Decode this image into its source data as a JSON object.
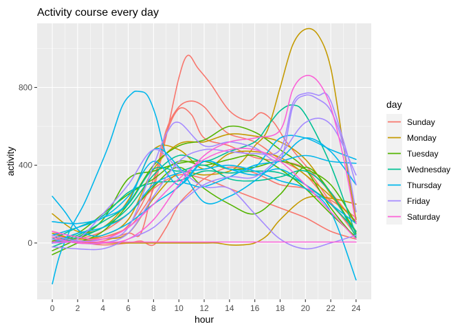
{
  "chart_data": {
    "type": "line",
    "title": "Activity course every day",
    "xlabel": "hour",
    "ylabel": "activity",
    "xlim": [
      -1.2,
      25.2
    ],
    "ylim": [
      -290,
      1130
    ],
    "x_ticks": [
      0,
      2,
      4,
      6,
      8,
      10,
      12,
      14,
      16,
      18,
      20,
      22,
      24
    ],
    "y_ticks": [
      0,
      400,
      800
    ],
    "grid": true,
    "legend_position": "right",
    "legend_title": "day",
    "series": [
      {
        "name": "Sunday",
        "color": "#F8766D",
        "lines": [
          {
            "x": [
              0,
              2,
              4,
              6,
              7,
              8,
              9,
              10,
              10.7,
              11.5,
              12.5,
              14,
              15.5,
              16.5,
              17.5,
              18.5,
              20,
              22,
              24
            ],
            "y": [
              20,
              10,
              30,
              80,
              160,
              280,
              550,
              850,
              965,
              900,
              820,
              680,
              630,
              670,
              620,
              520,
              400,
              260,
              100
            ]
          },
          {
            "x": [
              0,
              2,
              4,
              6,
              8,
              9,
              10,
              11,
              12,
              13,
              14,
              16,
              18,
              20,
              22,
              24
            ],
            "y": [
              40,
              20,
              30,
              90,
              330,
              580,
              700,
              730,
              700,
              620,
              560,
              520,
              430,
              350,
              200,
              60
            ]
          },
          {
            "x": [
              0,
              2,
              4,
              6,
              7,
              8,
              9,
              10,
              11,
              12,
              14,
              16,
              18,
              20,
              22,
              24
            ],
            "y": [
              30,
              0,
              10,
              50,
              50,
              300,
              560,
              690,
              660,
              540,
              500,
              440,
              420,
              380,
              210,
              40
            ]
          },
          {
            "x": [
              0,
              2,
              4,
              6,
              7,
              8,
              9,
              10,
              11,
              12,
              14,
              16,
              18,
              20,
              22,
              24
            ],
            "y": [
              60,
              10,
              -10,
              0,
              10,
              -10,
              80,
              200,
              270,
              330,
              390,
              360,
              300,
              280,
              220,
              130
            ]
          },
          {
            "x": [
              0,
              2,
              4,
              6,
              8,
              10,
              12,
              14,
              16,
              18,
              20,
              22,
              24
            ],
            "y": [
              10,
              20,
              60,
              150,
              280,
              350,
              330,
              280,
              230,
              180,
              130,
              60,
              20
            ]
          }
        ]
      },
      {
        "name": "Monday",
        "color": "#C49A00",
        "lines": [
          {
            "x": [
              0,
              2,
              4,
              6,
              8,
              10,
              12,
              14,
              15,
              16,
              17,
              18,
              19,
              20,
              21,
              22,
              23,
              24
            ],
            "y": [
              30,
              10,
              20,
              50,
              230,
              360,
              350,
              370,
              420,
              500,
              580,
              800,
              1020,
              1100,
              1070,
              900,
              500,
              120
            ]
          },
          {
            "x": [
              0,
              2,
              4,
              6,
              8,
              10,
              12,
              14,
              16,
              18,
              20,
              22,
              24
            ],
            "y": [
              50,
              20,
              40,
              120,
              380,
              510,
              520,
              560,
              550,
              520,
              430,
              250,
              60
            ]
          },
          {
            "x": [
              0,
              2,
              4,
              6,
              8,
              10,
              12,
              13,
              14,
              15,
              16,
              17,
              18,
              20,
              22,
              24
            ],
            "y": [
              20,
              0,
              0,
              0,
              0,
              0,
              0,
              0,
              -10,
              -10,
              0,
              40,
              120,
              230,
              230,
              200
            ]
          },
          {
            "x": [
              0,
              2,
              4,
              6,
              8,
              10,
              12,
              14,
              16,
              18,
              20,
              22,
              24
            ],
            "y": [
              150,
              60,
              80,
              220,
              480,
              480,
              380,
              460,
              470,
              440,
              350,
              240,
              110
            ]
          }
        ]
      },
      {
        "name": "Tuesday",
        "color": "#53B400",
        "lines": [
          {
            "x": [
              0,
              2,
              4,
              6,
              8,
              10,
              12,
              14,
              16,
              18,
              20,
              22,
              24
            ],
            "y": [
              -60,
              0,
              60,
              200,
              400,
              500,
              530,
              600,
              570,
              480,
              380,
              180,
              20
            ]
          },
          {
            "x": [
              0,
              2,
              4,
              6,
              8,
              10,
              12,
              14,
              16,
              18,
              20,
              22,
              24
            ],
            "y": [
              -40,
              20,
              80,
              150,
              290,
              390,
              280,
              200,
              150,
              250,
              390,
              260,
              50
            ]
          },
          {
            "x": [
              0,
              2,
              4,
              6,
              8,
              10,
              12,
              14,
              16,
              18,
              20,
              22,
              24
            ],
            "y": [
              0,
              30,
              120,
              330,
              370,
              410,
              420,
              380,
              390,
              420,
              380,
              300,
              100
            ]
          },
          {
            "x": [
              0,
              2,
              4,
              6,
              8,
              10,
              12,
              14,
              16,
              18,
              20,
              22,
              24
            ],
            "y": [
              10,
              50,
              150,
              250,
              330,
              420,
              400,
              430,
              450,
              380,
              280,
              150,
              30
            ]
          }
        ]
      },
      {
        "name": "Wednesday",
        "color": "#00C094",
        "lines": [
          {
            "x": [
              0,
              2,
              4,
              6,
              8,
              10,
              12,
              14,
              16,
              17,
              18,
              19,
              20,
              22,
              24
            ],
            "y": [
              -20,
              30,
              80,
              180,
              350,
              450,
              420,
              470,
              520,
              600,
              680,
              710,
              660,
              400,
              40
            ]
          },
          {
            "x": [
              0,
              2,
              4,
              6,
              8,
              10,
              12,
              14,
              16,
              18,
              20,
              22,
              24
            ],
            "y": [
              0,
              40,
              110,
              200,
              380,
              370,
              400,
              330,
              320,
              340,
              370,
              260,
              30
            ]
          },
          {
            "x": [
              0,
              2,
              4,
              6,
              8,
              10,
              12,
              14,
              16,
              18,
              20,
              22,
              24
            ],
            "y": [
              20,
              80,
              140,
              260,
              310,
              320,
              370,
              360,
              370,
              360,
              300,
              200,
              60
            ]
          }
        ]
      },
      {
        "name": "Thursday",
        "color": "#00B6EB",
        "lines": [
          {
            "x": [
              0,
              0.6,
              1.5,
              2.5,
              3.5,
              4.5,
              5.5,
              6.3,
              6.8,
              7.5,
              8.2,
              9,
              10,
              11,
              12,
              14,
              16,
              18,
              20,
              22,
              24
            ],
            "y": [
              -210,
              -60,
              80,
              200,
              350,
              510,
              700,
              770,
              780,
              760,
              650,
              450,
              330,
              300,
              290,
              340,
              400,
              420,
              450,
              420,
              410
            ]
          },
          {
            "x": [
              0,
              1,
              2,
              3,
              4,
              6,
              8,
              10,
              12,
              14,
              16,
              18,
              20,
              22,
              24
            ],
            "y": [
              240,
              160,
              70,
              40,
              40,
              100,
              200,
              290,
              420,
              380,
              390,
              540,
              540,
              480,
              430
            ]
          },
          {
            "x": [
              0,
              2,
              4,
              6,
              8,
              10,
              12,
              14,
              16,
              18,
              20,
              22,
              24
            ],
            "y": [
              110,
              100,
              130,
              210,
              480,
              390,
              210,
              240,
              320,
              430,
              540,
              470,
              300
            ]
          },
          {
            "x": [
              0,
              2,
              4,
              6,
              8,
              10,
              12,
              14,
              16,
              18,
              20,
              22,
              24
            ],
            "y": [
              0,
              50,
              80,
              150,
              300,
              360,
              380,
              400,
              370,
              320,
              280,
              160,
              -190
            ]
          },
          {
            "x": [
              0,
              2,
              4,
              6,
              8,
              10,
              12,
              14,
              16,
              18,
              20,
              22,
              24
            ],
            "y": [
              40,
              80,
              130,
              240,
              420,
              300,
              420,
              380,
              350,
              380,
              300,
              200,
              100
            ]
          }
        ]
      },
      {
        "name": "Friday",
        "color": "#A58AFF",
        "lines": [
          {
            "x": [
              0,
              2,
              4,
              6,
              8,
              9,
              10,
              12,
              14,
              16,
              18,
              19,
              20,
              21,
              22,
              23,
              24
            ],
            "y": [
              40,
              10,
              20,
              80,
              400,
              560,
              620,
              500,
              520,
              490,
              430,
              700,
              760,
              740,
              680,
              500,
              160
            ]
          },
          {
            "x": [
              0,
              2,
              4,
              6,
              8,
              10,
              12,
              14,
              16,
              18,
              20,
              22,
              24
            ],
            "y": [
              0,
              20,
              150,
              300,
              480,
              380,
              290,
              280,
              150,
              20,
              -30,
              0,
              40
            ]
          },
          {
            "x": [
              0,
              2,
              4,
              6,
              8,
              10,
              12,
              14,
              16,
              18,
              20,
              22,
              24
            ],
            "y": [
              -20,
              -30,
              -30,
              20,
              80,
              200,
              300,
              340,
              340,
              450,
              620,
              610,
              350
            ]
          },
          {
            "x": [
              0,
              2,
              4,
              6,
              8,
              10,
              12,
              14,
              16,
              18,
              19,
              20,
              21,
              22,
              24
            ],
            "y": [
              20,
              0,
              0,
              50,
              240,
              420,
              480,
              470,
              460,
              480,
              720,
              770,
              760,
              730,
              300
            ]
          }
        ]
      },
      {
        "name": "Saturday",
        "color": "#FB61D7",
        "lines": [
          {
            "x": [
              0,
              2,
              4,
              6,
              8,
              10,
              12,
              14,
              16,
              18,
              19,
              20,
              21,
              22,
              23,
              24
            ],
            "y": [
              30,
              0,
              0,
              20,
              120,
              300,
              450,
              520,
              540,
              580,
              790,
              860,
              830,
              700,
              440,
              100
            ]
          },
          {
            "x": [
              0,
              4,
              8,
              12,
              16,
              20,
              24
            ],
            "y": [
              5,
              5,
              5,
              5,
              5,
              5,
              5
            ]
          },
          {
            "x": [
              0,
              2,
              4,
              6,
              8,
              10,
              12,
              14,
              16,
              18,
              20,
              22,
              24
            ],
            "y": [
              60,
              30,
              20,
              80,
              200,
              330,
              430,
              480,
              480,
              420,
              300,
              160,
              20
            ]
          }
        ]
      }
    ]
  }
}
